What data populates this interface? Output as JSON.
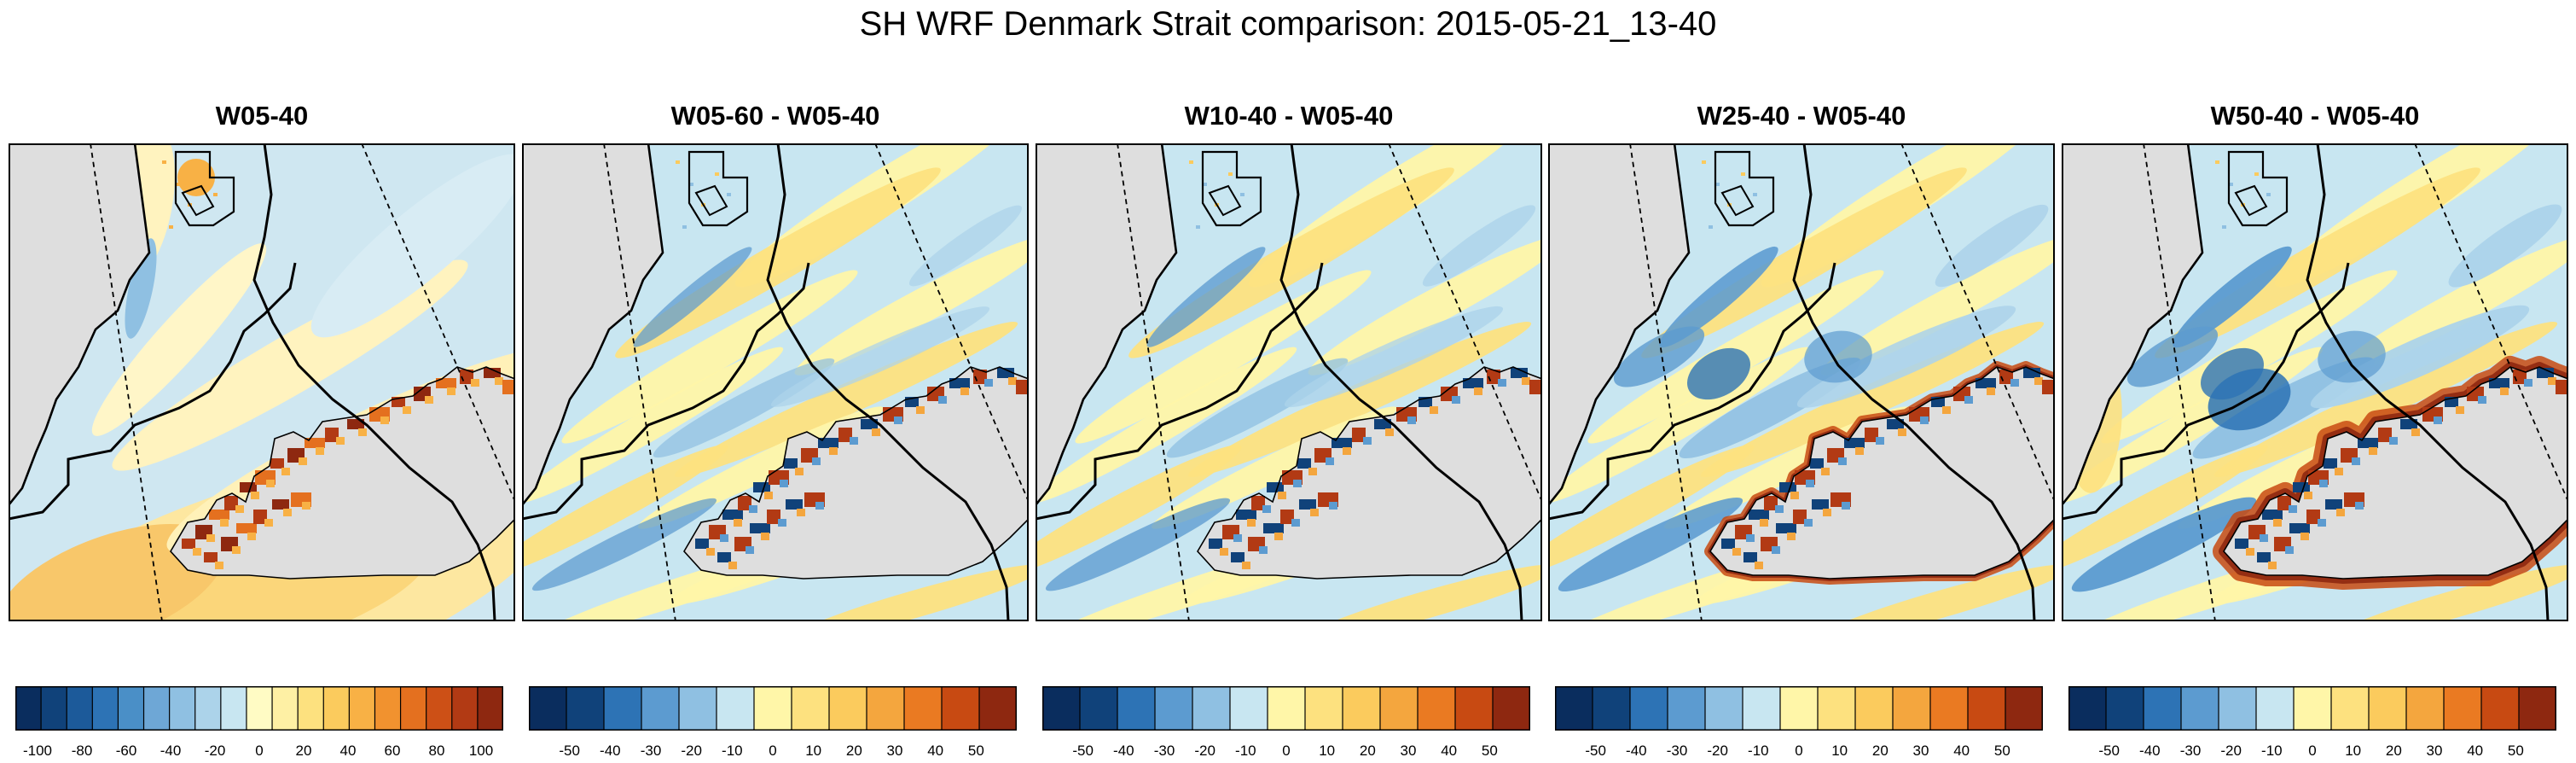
{
  "figure": {
    "title": "SH WRF Denmark Strait comparison: 2015-05-21_13-40"
  },
  "palettes": {
    "absolute": [
      "#0a2d5e",
      "#10427a",
      "#1c5a9a",
      "#2d73b5",
      "#4a8fc7",
      "#6ea7d6",
      "#8fc0e2",
      "#acd3ea",
      "#c8e6f1",
      "#fffbc4",
      "#fef0a4",
      "#fde17f",
      "#fbcb5d",
      "#f8b145",
      "#f1922f",
      "#e4701f",
      "#cd5016",
      "#b23a14",
      "#8e2810"
    ],
    "difference": [
      "#0a2d5e",
      "#10427a",
      "#2d73b5",
      "#5c9bd0",
      "#8fc0e2",
      "#c8e6f1",
      "#fff6a8",
      "#fde17f",
      "#fbcb5d",
      "#f4a63e",
      "#ea7a22",
      "#c84a12",
      "#8e2810"
    ],
    "land": "#dedede",
    "ocean_mid": "#cfe7f1"
  },
  "chart_data": [
    {
      "type": "heatmap",
      "title": "W05-40",
      "colorbar": {
        "type": "absolute",
        "ticks": [
          "-100",
          "-80",
          "-60",
          "-40",
          "-20",
          "0",
          "20",
          "40",
          "60",
          "80",
          "100"
        ],
        "range": [
          -110,
          110
        ],
        "step": 20
      }
    },
    {
      "type": "heatmap",
      "title": "W05-60 - W05-40",
      "colorbar": {
        "type": "difference",
        "ticks": [
          "-50",
          "-40",
          "-30",
          "-20",
          "-10",
          "0",
          "10",
          "20",
          "30",
          "40",
          "50"
        ],
        "range": [
          -60,
          60
        ],
        "step": 10
      }
    },
    {
      "type": "heatmap",
      "title": "W10-40 - W05-40",
      "colorbar": {
        "type": "difference",
        "ticks": [
          "-50",
          "-40",
          "-30",
          "-20",
          "-10",
          "0",
          "10",
          "20",
          "30",
          "40",
          "50"
        ],
        "range": [
          -60,
          60
        ],
        "step": 10
      }
    },
    {
      "type": "heatmap",
      "title": "W25-40 - W05-40",
      "colorbar": {
        "type": "difference",
        "ticks": [
          "-50",
          "-40",
          "-30",
          "-20",
          "-10",
          "0",
          "10",
          "20",
          "30",
          "40",
          "50"
        ],
        "range": [
          -60,
          60
        ],
        "step": 10
      }
    },
    {
      "type": "heatmap",
      "title": "W50-40 - W05-40",
      "colorbar": {
        "type": "difference",
        "ticks": [
          "-50",
          "-40",
          "-30",
          "-20",
          "-10",
          "0",
          "10",
          "20",
          "30",
          "40",
          "50"
        ],
        "range": [
          -60,
          60
        ],
        "step": 10
      }
    }
  ]
}
